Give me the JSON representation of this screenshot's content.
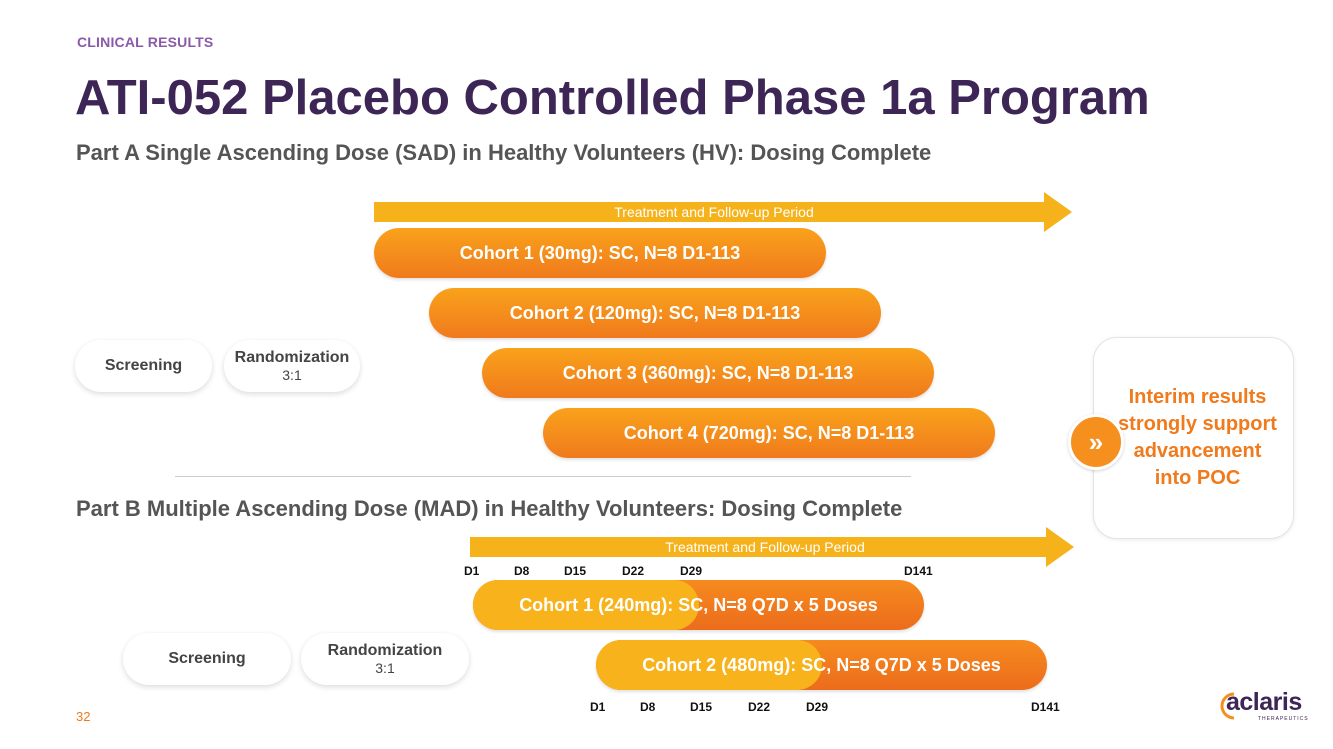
{
  "header": {
    "section_label": "CLINICAL RESULTS",
    "title": "ATI-052 Placebo Controlled Phase 1a Program",
    "part_a_title": "Part A Single Ascending Dose (SAD) in Healthy Volunteers (HV): Dosing Complete",
    "part_b_title": "Part B Multiple Ascending Dose (MAD) in Healthy Volunteers: Dosing Complete"
  },
  "part_a": {
    "arrow_label": "Treatment and Follow-up Period",
    "screening": "Screening",
    "randomization": "Randomization",
    "ratio": "3:1",
    "cohorts": [
      "Cohort 1 (30mg): SC, N=8 D1-113",
      "Cohort 2 (120mg): SC, N=8 D1-113",
      "Cohort 3 (360mg): SC, N=8 D1-113",
      "Cohort 4 (720mg): SC, N=8 D1-113"
    ]
  },
  "part_b": {
    "arrow_label": "Treatment and Follow-up Period",
    "screening": "Screening",
    "randomization": "Randomization",
    "ratio": "3:1",
    "cohorts": [
      "Cohort 1 (240mg): SC, N=8 Q7D x 5 Doses",
      "Cohort 2 (480mg): SC, N=8 Q7D x 5 Doses"
    ],
    "days_top": [
      "D1",
      "D8",
      "D15",
      "D22",
      "D29",
      "D141"
    ],
    "days_bottom": [
      "D1",
      "D8",
      "D15",
      "D22",
      "D29",
      "D141"
    ]
  },
  "result": {
    "text": "Interim results strongly support advancement into POC",
    "icon": "double-chevron-right-icon"
  },
  "footer": {
    "page_number": "32",
    "logo_text": "aclaris",
    "logo_subtext": "THERAPEUTICS"
  },
  "colors": {
    "accent_orange": "#f07a1c",
    "arrow_yellow": "#f6b21a",
    "title_purple": "#3d2556",
    "label_purple": "#8a5aa8"
  }
}
